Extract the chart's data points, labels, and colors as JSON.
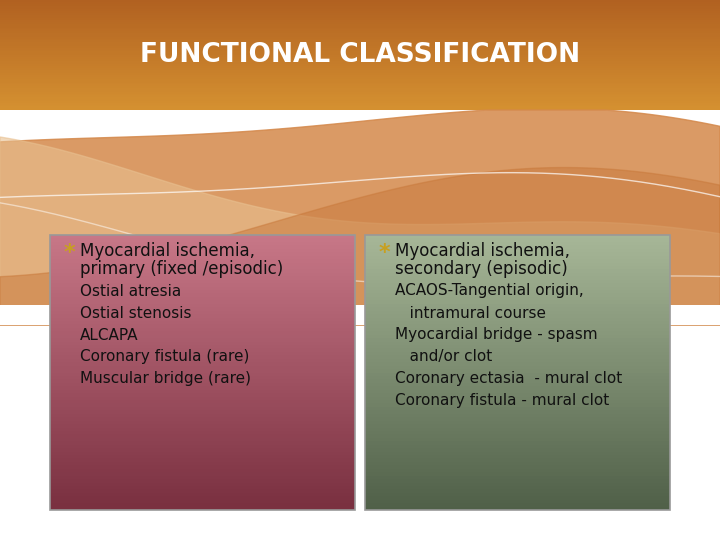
{
  "title": "FUNCTIONAL CLASSIFICATION",
  "title_color": "#ffffff",
  "background_color": "#ffffff",
  "left_box": {
    "color_top": "#c87878",
    "color_bottom": "#8b3a4a",
    "border_color": "#aaaaaa",
    "bullet_color": "#c8a020",
    "header_line1": "Myocardial ischemia,",
    "header_line2": "primary (fixed /episodic)",
    "items": [
      "Ostial atresia",
      "Ostial stenosis",
      "ALCAPA",
      "Coronary fistula (rare)",
      "Muscular bridge (rare)"
    ]
  },
  "right_box": {
    "color_top": "#a0b090",
    "color_bottom": "#607050",
    "border_color": "#aaaaaa",
    "bullet_color": "#c8a020",
    "header_line1": "Myocardial ischemia,",
    "header_line2": "secondary (episodic)",
    "items_line1": [
      "ACAOS-Tangential origin,",
      "Myocardial bridge - spasm",
      "Coronary ectasia  - mural clot",
      "Coronary fistula - mural clot"
    ],
    "items_line2": [
      "   intramural course",
      "   and/or clot",
      "",
      ""
    ]
  },
  "figsize": [
    7.2,
    5.4
  ],
  "dpi": 100
}
